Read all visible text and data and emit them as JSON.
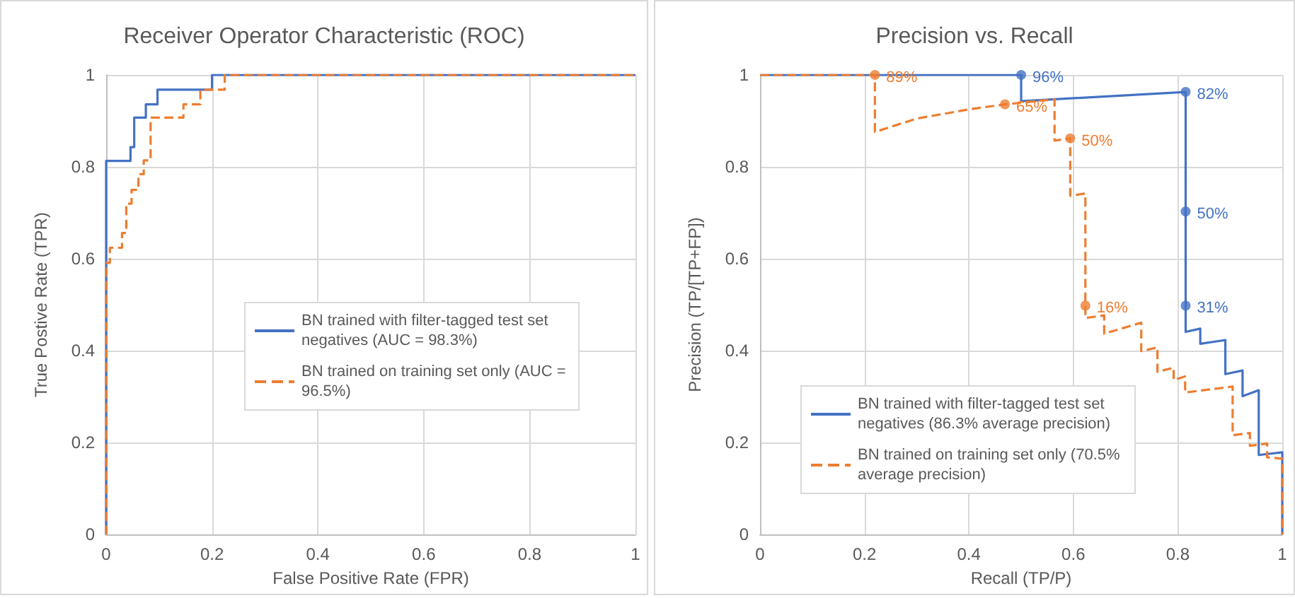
{
  "chart_data": [
    {
      "type": "line",
      "title": "Receiver Operator Characteristic (ROC)",
      "xlabel": "False Positive Rate (FPR)",
      "ylabel": "True Postive Rate (TPR)",
      "xlim": [
        0,
        1
      ],
      "ylim": [
        0,
        1
      ],
      "xticks": [
        0,
        0.2,
        0.4,
        0.6,
        0.8,
        1
      ],
      "yticks": [
        0,
        0.2,
        0.4,
        0.6,
        0.8,
        1
      ],
      "grid": true,
      "legend": "right",
      "series": [
        {
          "name": "BN trained with filter-tagged test set negatives (AUC = 98.3%)",
          "color": "#4472c4",
          "line_style": "solid",
          "marker": "none",
          "x": [
            0,
            0,
            0.046,
            0.046,
            0.053,
            0.053,
            0.075,
            0.075,
            0.097,
            0.097,
            0.2,
            0.2,
            1
          ],
          "values": [
            0,
            0.813,
            0.813,
            0.843,
            0.843,
            0.907,
            0.907,
            0.936,
            0.936,
            0.968,
            0.968,
            1,
            1
          ]
        },
        {
          "name": "BN trained on training set only (AUC = 96.5%)",
          "color": "#ed7d31",
          "line_style": "dashed",
          "marker": "none",
          "x": [
            0,
            0,
            0.007,
            0.007,
            0.03,
            0.03,
            0.038,
            0.038,
            0.048,
            0.048,
            0.061,
            0.061,
            0.071,
            0.071,
            0.084,
            0.084,
            0.146,
            0.146,
            0.178,
            0.178,
            0.224,
            0.224,
            1
          ],
          "values": [
            0,
            0.591,
            0.591,
            0.624,
            0.624,
            0.656,
            0.656,
            0.72,
            0.72,
            0.75,
            0.75,
            0.784,
            0.784,
            0.814,
            0.814,
            0.907,
            0.907,
            0.936,
            0.936,
            0.968,
            0.968,
            1,
            1
          ]
        }
      ]
    },
    {
      "type": "line",
      "title": "Precision vs. Recall",
      "annotations": [
        {
          "text": "96%",
          "x": 0.5,
          "y": 1
        },
        {
          "text": "82%",
          "x": 0.815,
          "y": 0.963
        },
        {
          "text": "50%",
          "x": 0.815,
          "y": 0.703
        },
        {
          "text": "31%",
          "x": 0.815,
          "y": 0.498
        },
        {
          "text": "89%",
          "x": 0.22,
          "y": 1
        },
        {
          "text": "65%",
          "x": 0.469,
          "y": 0.936
        },
        {
          "text": "50%",
          "x": 0.594,
          "y": 0.862
        },
        {
          "text": "16%",
          "x": 0.623,
          "y": 0.498
        }
      ],
      "xlabel": "Recall (TP/P)",
      "ylabel": "Precision (TP/[TP+FP])",
      "xlim": [
        0,
        1
      ],
      "ylim": [
        0,
        1
      ],
      "xticks": [
        0,
        0.2,
        0.4,
        0.6,
        0.8,
        1
      ],
      "yticks": [
        0,
        0.2,
        0.4,
        0.6,
        0.8,
        1
      ],
      "grid": true,
      "legend": "bottom left",
      "series": [
        {
          "name": "BN trained with filter-tagged test set negatives (86.3% average precision)",
          "color": "#4472c4",
          "line_style": "solid",
          "marker": "none",
          "x": [
            0,
            0.5,
            0.5,
            0.815,
            0.815,
            0.843,
            0.843,
            0.878,
            0.891,
            0.891,
            0.924,
            0.924,
            0.955,
            0.955,
            1,
            1
          ],
          "values": [
            1,
            1,
            0.943,
            0.963,
            0.441,
            0.448,
            0.415,
            0.421,
            0.423,
            0.349,
            0.357,
            0.301,
            0.314,
            0.173,
            0.179,
            0
          ]
        },
        {
          "name": "BN trained on training set only (70.5% average precision)",
          "color": "#ed7d31",
          "line_style": "dashed",
          "marker": "none",
          "x": [
            0,
            0.22,
            0.22,
            0.3,
            0.4,
            0.469,
            0.564,
            0.564,
            0.594,
            0.594,
            0.623,
            0.623,
            0.659,
            0.659,
            0.73,
            0.73,
            0.761,
            0.761,
            0.792,
            0.792,
            0.814,
            0.814,
            0.905,
            0.905,
            0.938,
            0.938,
            0.971,
            0.971,
            1,
            1
          ],
          "values": [
            1,
            1,
            0.876,
            0.905,
            0.925,
            0.936,
            0.947,
            0.857,
            0.862,
            0.737,
            0.742,
            0.471,
            0.477,
            0.437,
            0.461,
            0.399,
            0.407,
            0.354,
            0.363,
            0.336,
            0.344,
            0.309,
            0.322,
            0.216,
            0.221,
            0.193,
            0.198,
            0.168,
            0.165,
            0
          ]
        },
        {
          "type": "scatter",
          "color": "#4472c4",
          "marker": "circle",
          "x": [
            0.5,
            0.815,
            0.815,
            0.815
          ],
          "values": [
            1,
            0.963,
            0.703,
            0.498
          ]
        },
        {
          "type": "scatter",
          "color": "#ed7d31",
          "marker": "circle",
          "x": [
            0.22,
            0.469,
            0.594,
            0.623
          ],
          "values": [
            1,
            0.936,
            0.862,
            0.498
          ]
        }
      ]
    }
  ]
}
